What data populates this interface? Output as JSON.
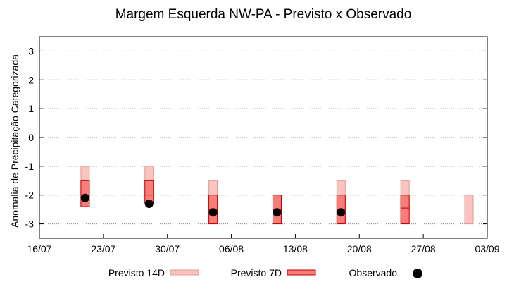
{
  "chart_data": {
    "type": "range-bar",
    "title": "Margem Esquerda NW-PA - Previsto x Observado",
    "ylabel": "Anomalia de Precipitação Categorizada",
    "xlabel": "",
    "ylim": [
      -3.5,
      3.5
    ],
    "xlim": [
      "2024-07-16",
      "2024-09-03"
    ],
    "yticks": [
      -3,
      -2,
      -1,
      0,
      1,
      2,
      3
    ],
    "xticks": [
      "16/07",
      "23/07",
      "30/07",
      "06/08",
      "13/08",
      "20/08",
      "27/08",
      "03/09"
    ],
    "grid": "horizontal dotted",
    "legend_position": "bottom",
    "categories": [
      "21/07",
      "28/07",
      "04/08",
      "11/08",
      "18/08",
      "25/08",
      "01/09"
    ],
    "series": [
      {
        "name": "Previsto 14D",
        "fill": "#f9c4c0",
        "stroke": "#e39a90",
        "ranges": [
          [
            -2.4,
            -1.0
          ],
          [
            -2.3,
            -1.0
          ],
          [
            -3.0,
            -1.5
          ],
          null,
          [
            -3.0,
            -1.5
          ],
          [
            -3.0,
            -1.5
          ],
          [
            -3.0,
            -2.0
          ]
        ],
        "medians": [
          -2.0,
          -2.0,
          -2.4,
          null,
          -2.5,
          -2.45,
          null
        ]
      },
      {
        "name": "Previsto 7D",
        "fill": "#f87c78",
        "stroke": "#c00000",
        "ranges": [
          [
            -2.4,
            -1.5
          ],
          [
            -2.3,
            -1.5
          ],
          [
            -3.0,
            -2.0
          ],
          [
            -3.0,
            -2.0
          ],
          [
            -3.0,
            -2.0
          ],
          [
            -3.0,
            -2.0
          ],
          null
        ],
        "medians": [
          -2.0,
          -2.0,
          -2.5,
          -2.5,
          -2.5,
          -2.45,
          null
        ]
      },
      {
        "name": "Observado",
        "color": "#000000",
        "values": [
          -2.1,
          -2.3,
          -2.6,
          -2.6,
          -2.6,
          null,
          null
        ]
      }
    ]
  }
}
